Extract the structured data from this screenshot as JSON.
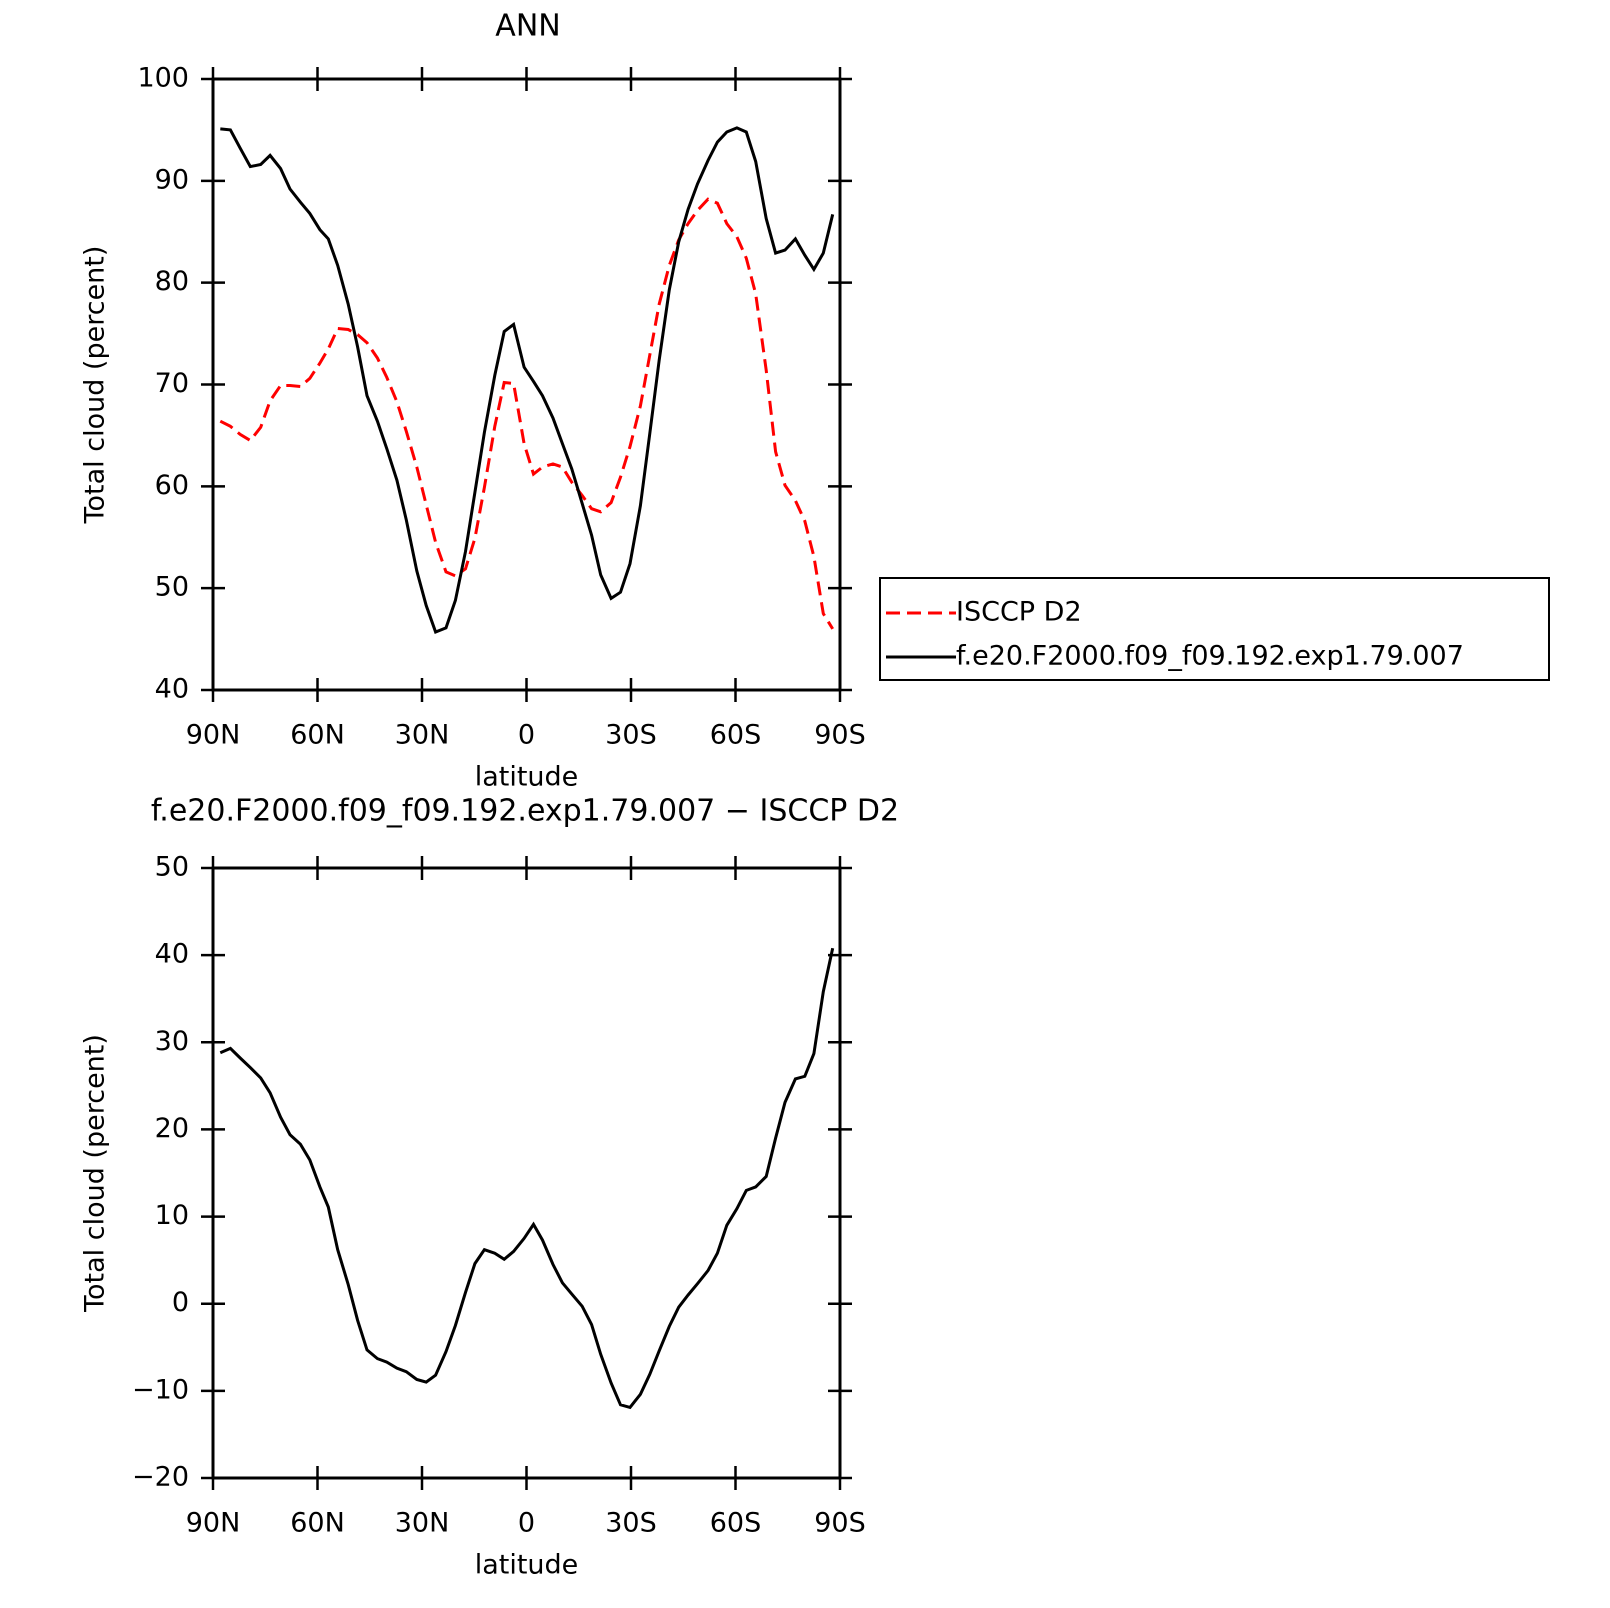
{
  "chart_data": [
    {
      "type": "line",
      "title": "ANN",
      "xlabel": "latitude",
      "ylabel": "Total cloud (percent)",
      "x": [
        87.9,
        85,
        82.2,
        79.3,
        76.3,
        73.6,
        70.6,
        67.9,
        64.9,
        62.2,
        59.3,
        56.9,
        54.2,
        51.2,
        48.5,
        45.8,
        42.8,
        40.1,
        37.2,
        34.5,
        31.5,
        28.8,
        26.1,
        23.1,
        20.4,
        17.5,
        14.8,
        12.1,
        9.1,
        6.4,
        3.7,
        0.7,
        -2,
        -4.6,
        -7.6,
        -10.3,
        -13,
        -16,
        -18.7,
        -21.3,
        -24.3,
        -27,
        -29.7,
        -32.7,
        -35.4,
        -38.1,
        -41,
        -43.7,
        -46.4,
        -49.1,
        -52.1,
        -54.8,
        -57.5,
        -60.4,
        -63.1,
        -65.8,
        -68.8,
        -71.5,
        -74.2,
        -77.2,
        -79.9,
        -82.5,
        -85.2,
        -87.9
      ],
      "series": [
        {
          "name": "ISCCP D2",
          "color": "#ff0000",
          "line_style": "dashed",
          "values": [
            66.4,
            65.9,
            65.1,
            64.5,
            65.8,
            68.4,
            69.9,
            69.9,
            69.8,
            70.6,
            72.1,
            73.5,
            75.5,
            75.4,
            74.9,
            74.1,
            72.6,
            70.7,
            68.3,
            65.4,
            61.9,
            58.2,
            54.5,
            51.6,
            51.2,
            51.9,
            54.9,
            59.9,
            65.9,
            70.2,
            70.1,
            64.2,
            61.2,
            61.9,
            62.2,
            61.9,
            60.4,
            59.1,
            57.8,
            57.5,
            58.4,
            60.9,
            63.9,
            67.9,
            72.9,
            77.9,
            81.7,
            84.2,
            85.8,
            87.1,
            88.2,
            87.8,
            85.8,
            84.5,
            82.4,
            78.9,
            71.4,
            63.4,
            60.1,
            58.6,
            56.6,
            53.1,
            47.5,
            46.0
          ]
        },
        {
          "name": "f.e20.F2000.f09_f09.192.exp1.79.007",
          "color": "#000000",
          "line_style": "solid",
          "values": [
            95.1,
            95.0,
            93.2,
            91.4,
            91.6,
            92.5,
            91.2,
            89.2,
            87.9,
            86.8,
            85.2,
            84.3,
            81.7,
            77.9,
            73.7,
            68.9,
            66.4,
            63.7,
            60.6,
            56.7,
            51.7,
            48.3,
            45.7,
            46.1,
            48.8,
            53.6,
            59.4,
            65.3,
            70.9,
            75.2,
            75.9,
            71.7,
            70.3,
            68.9,
            66.7,
            64.2,
            61.7,
            58.3,
            55.2,
            51.3,
            49.0,
            49.6,
            52.4,
            58.1,
            65.2,
            72.4,
            79.3,
            84.0,
            87.2,
            89.7,
            92.0,
            93.8,
            94.8,
            95.2,
            94.8,
            91.9,
            86.3,
            82.9,
            83.2,
            84.3,
            82.7,
            81.3,
            82.9,
            86.7
          ]
        }
      ],
      "xlim": [
        90,
        -90
      ],
      "xticks": [
        {
          "value": 90,
          "label": "90N"
        },
        {
          "value": 60,
          "label": "60N"
        },
        {
          "value": 30,
          "label": "30N"
        },
        0,
        {
          "value": -30,
          "label": "30S"
        },
        {
          "value": -60,
          "label": "60S"
        },
        {
          "value": -90,
          "label": "90S"
        }
      ],
      "ylim": [
        40,
        100
      ],
      "yticks": [
        40,
        50,
        60,
        70,
        80,
        90,
        100
      ],
      "legend": "right"
    },
    {
      "type": "line",
      "title": "f.e20.F2000.f09_f09.192.exp1.79.007 − ISCCP D2",
      "xlabel": "latitude",
      "ylabel": "Total cloud (percent)",
      "x": [
        87.9,
        85,
        82.2,
        79.3,
        76.3,
        73.6,
        70.6,
        67.9,
        64.9,
        62.2,
        59.3,
        56.9,
        54.2,
        51.2,
        48.5,
        45.8,
        42.8,
        40.1,
        37.2,
        34.5,
        31.5,
        28.8,
        26.1,
        23.1,
        20.4,
        17.5,
        14.8,
        12.1,
        9.1,
        6.4,
        3.7,
        0.7,
        -2,
        -4.6,
        -7.6,
        -10.3,
        -13,
        -16,
        -18.7,
        -21.3,
        -24.3,
        -27,
        -29.7,
        -32.7,
        -35.4,
        -38.1,
        -41,
        -43.7,
        -46.4,
        -49.1,
        -52.1,
        -54.8,
        -57.5,
        -60.4,
        -63.1,
        -65.8,
        -68.8,
        -71.5,
        -74.2,
        -77.2,
        -79.9,
        -82.5,
        -85.2,
        -87.9
      ],
      "series": [
        {
          "color": "#000000",
          "line_style": "solid",
          "values": [
            28.8,
            29.3,
            28.2,
            27.1,
            25.9,
            24.2,
            21.4,
            19.4,
            18.3,
            16.5,
            13.4,
            11.1,
            6.2,
            2.2,
            -1.9,
            -5.3,
            -6.3,
            -6.7,
            -7.4,
            -7.8,
            -8.7,
            -9.0,
            -8.2,
            -5.5,
            -2.5,
            1.3,
            4.6,
            6.2,
            5.8,
            5.1,
            6.0,
            7.5,
            9.1,
            7.3,
            4.5,
            2.4,
            1.1,
            -0.3,
            -2.4,
            -5.8,
            -9.1,
            -11.6,
            -11.9,
            -10.4,
            -8.1,
            -5.4,
            -2.6,
            -0.4,
            1.0,
            2.3,
            3.8,
            5.8,
            9.0,
            10.9,
            13.0,
            13.4,
            14.6,
            19.0,
            23.1,
            25.8,
            26.1,
            28.7,
            35.8,
            40.8
          ]
        }
      ],
      "xlim": [
        90,
        -90
      ],
      "xticks": [
        {
          "value": 90,
          "label": "90N"
        },
        {
          "value": 60,
          "label": "60N"
        },
        {
          "value": 30,
          "label": "30N"
        },
        0,
        {
          "value": -30,
          "label": "30S"
        },
        {
          "value": -60,
          "label": "60S"
        },
        {
          "value": -90,
          "label": "90S"
        }
      ],
      "ylim": [
        -20,
        50
      ],
      "yticks": [
        {
          "value": -20,
          "label": "−20"
        },
        {
          "value": -10,
          "label": "−10"
        },
        0,
        10,
        20,
        30,
        40,
        50
      ]
    }
  ]
}
